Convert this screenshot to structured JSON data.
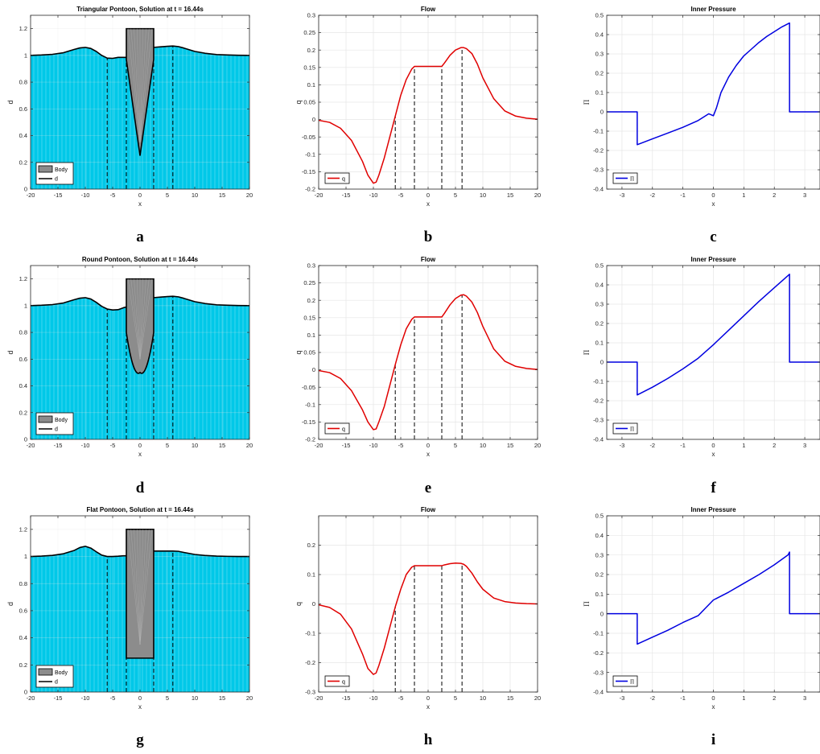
{
  "colors": {
    "water": "#00c8e8",
    "body": "#8c8c8c",
    "surface": "#000000",
    "flow": "#e00000",
    "pressure": "#0000e0",
    "grid": "#e6e6e6"
  },
  "chart_data": [
    {
      "id": "a",
      "type": "area",
      "letter": "a",
      "title": "Triangular Pontoon, Solution at t = 16.44s",
      "xlabel": "x",
      "ylabel": "d",
      "xlim": [
        -20,
        20
      ],
      "ylim": [
        0,
        1.3
      ],
      "xticks": [
        -20,
        -15,
        -10,
        -5,
        0,
        5,
        10,
        15,
        20
      ],
      "yticks": [
        0,
        0.2,
        0.4,
        0.6,
        0.8,
        1,
        1.2
      ],
      "grid": true,
      "legend_position": "bottom-left",
      "legend": [
        "Body",
        "d"
      ],
      "body_shape": "triangle",
      "body_top": 1.2,
      "body_bottom": 0.25,
      "body_half_width": 2.5,
      "vlines": [
        -6,
        -2.5,
        2.5,
        6
      ],
      "series": [
        {
          "name": "d",
          "x": [
            -20,
            -18,
            -16,
            -14,
            -12,
            -11,
            -10,
            -9,
            -8,
            -7,
            -6,
            -5,
            -4,
            -3,
            -2.5
          ],
          "y": [
            1.0,
            1.003,
            1.008,
            1.02,
            1.045,
            1.056,
            1.06,
            1.052,
            1.03,
            1.0,
            0.98,
            0.978,
            0.985,
            0.985,
            0.985
          ]
        },
        {
          "name": "d-right",
          "x": [
            2.5,
            4,
            5,
            6,
            7,
            8,
            10,
            12,
            14,
            16,
            18,
            20
          ],
          "y": [
            1.06,
            1.065,
            1.068,
            1.07,
            1.066,
            1.055,
            1.03,
            1.015,
            1.006,
            1.003,
            1.001,
            1.0
          ]
        }
      ]
    },
    {
      "id": "b",
      "type": "line",
      "letter": "b",
      "title": "Flow",
      "xlabel": "x",
      "ylabel": "q",
      "xlim": [
        -20,
        20
      ],
      "ylim": [
        -0.2,
        0.3
      ],
      "xticks": [
        -20,
        -15,
        -10,
        -5,
        0,
        5,
        10,
        15,
        20
      ],
      "yticks": [
        -0.2,
        -0.15,
        -0.1,
        -0.05,
        0,
        0.05,
        0.1,
        0.15,
        0.2,
        0.25,
        0.3
      ],
      "grid": true,
      "legend_position": "bottom-left",
      "legend": [
        "q"
      ],
      "vlines": [
        -6,
        -2.5,
        2.5,
        6.2
      ],
      "series": [
        {
          "name": "q",
          "x": [
            -20,
            -18,
            -16,
            -14,
            -12,
            -11,
            -10,
            -9.5,
            -9,
            -8,
            -7,
            -6,
            -5,
            -4,
            -3,
            -2.5,
            0,
            2.5,
            3,
            4,
            5,
            6,
            6.5,
            7,
            8,
            9,
            10,
            12,
            14,
            16,
            18,
            20
          ],
          "y": [
            -0.002,
            -0.008,
            -0.025,
            -0.06,
            -0.12,
            -0.16,
            -0.183,
            -0.18,
            -0.16,
            -0.11,
            -0.05,
            0.01,
            0.07,
            0.115,
            0.145,
            0.153,
            0.153,
            0.153,
            0.163,
            0.185,
            0.2,
            0.207,
            0.207,
            0.204,
            0.19,
            0.16,
            0.12,
            0.06,
            0.025,
            0.01,
            0.004,
            0.001
          ]
        }
      ]
    },
    {
      "id": "c",
      "type": "line",
      "letter": "c",
      "title": "Inner Pressure",
      "xlabel": "x",
      "ylabel": "Π",
      "xlim": [
        -3.5,
        3.5
      ],
      "ylim": [
        -0.4,
        0.5
      ],
      "xticks": [
        -3,
        -2,
        -1,
        0,
        1,
        2,
        3
      ],
      "yticks": [
        -0.4,
        -0.3,
        -0.2,
        -0.1,
        0,
        0.1,
        0.2,
        0.3,
        0.4,
        0.5
      ],
      "grid": true,
      "legend_position": "bottom-left",
      "legend": [
        "Π"
      ],
      "series": [
        {
          "name": "Π",
          "x": [
            -3.5,
            -2.5,
            -2.5,
            -2.0,
            -1.5,
            -1.0,
            -0.5,
            -0.25,
            -0.15,
            0.0,
            0.1,
            0.25,
            0.5,
            0.75,
            1.0,
            1.25,
            1.5,
            1.75,
            2.0,
            2.25,
            2.5,
            2.5,
            3.5
          ],
          "y": [
            0,
            0,
            -0.17,
            -0.14,
            -0.11,
            -0.08,
            -0.045,
            -0.02,
            -0.01,
            -0.02,
            0.02,
            0.1,
            0.18,
            0.24,
            0.29,
            0.325,
            0.36,
            0.39,
            0.415,
            0.44,
            0.46,
            0,
            0
          ]
        }
      ]
    },
    {
      "id": "d",
      "type": "area",
      "letter": "d",
      "title": "Round Pontoon, Solution at t = 16.44s",
      "xlabel": "x",
      "ylabel": "d",
      "xlim": [
        -20,
        20
      ],
      "ylim": [
        0,
        1.3
      ],
      "xticks": [
        -20,
        -15,
        -10,
        -5,
        0,
        5,
        10,
        15,
        20
      ],
      "yticks": [
        0,
        0.2,
        0.4,
        0.6,
        0.8,
        1,
        1.2
      ],
      "grid": true,
      "legend_position": "bottom-left",
      "legend": [
        "Body",
        "d"
      ],
      "body_shape": "round",
      "body_top": 1.2,
      "body_bottom": 0.5,
      "body_half_width": 2.5,
      "vlines": [
        -6,
        -2.5,
        2.5,
        6
      ],
      "series": [
        {
          "name": "d",
          "x": [
            -20,
            -18,
            -16,
            -14,
            -12,
            -11,
            -10,
            -9,
            -8,
            -7,
            -6,
            -5,
            -4,
            -3,
            -2.5
          ],
          "y": [
            1.0,
            1.003,
            1.008,
            1.02,
            1.045,
            1.056,
            1.06,
            1.05,
            1.025,
            0.995,
            0.975,
            0.968,
            0.97,
            0.985,
            0.99
          ]
        },
        {
          "name": "d-right",
          "x": [
            2.5,
            4,
            5,
            6,
            7,
            8,
            10,
            12,
            14,
            16,
            18,
            20
          ],
          "y": [
            1.06,
            1.065,
            1.068,
            1.07,
            1.066,
            1.055,
            1.03,
            1.015,
            1.006,
            1.003,
            1.001,
            1.0
          ]
        }
      ]
    },
    {
      "id": "e",
      "type": "line",
      "letter": "e",
      "title": "Flow",
      "xlabel": "x",
      "ylabel": "q",
      "xlim": [
        -20,
        20
      ],
      "ylim": [
        -0.2,
        0.3
      ],
      "xticks": [
        -20,
        -15,
        -10,
        -5,
        0,
        5,
        10,
        15,
        20
      ],
      "yticks": [
        -0.2,
        -0.15,
        -0.1,
        -0.05,
        0,
        0.05,
        0.1,
        0.15,
        0.2,
        0.25,
        0.3
      ],
      "grid": true,
      "legend_position": "bottom-left",
      "legend": [
        "q"
      ],
      "vlines": [
        -6,
        -2.5,
        2.5,
        6.2
      ],
      "series": [
        {
          "name": "q",
          "x": [
            -20,
            -18,
            -16,
            -14,
            -12,
            -11,
            -10,
            -9.5,
            -9,
            -8,
            -7,
            -6,
            -5,
            -4,
            -3,
            -2.5,
            0,
            2.5,
            3,
            4,
            5,
            6,
            6.5,
            7,
            8,
            9,
            10,
            12,
            14,
            16,
            18,
            20
          ],
          "y": [
            -0.002,
            -0.008,
            -0.025,
            -0.06,
            -0.115,
            -0.15,
            -0.172,
            -0.17,
            -0.15,
            -0.105,
            -0.045,
            0.015,
            0.072,
            0.118,
            0.145,
            0.152,
            0.152,
            0.152,
            0.163,
            0.187,
            0.205,
            0.215,
            0.216,
            0.212,
            0.195,
            0.165,
            0.125,
            0.06,
            0.025,
            0.01,
            0.004,
            0.001
          ]
        }
      ]
    },
    {
      "id": "f",
      "type": "line",
      "letter": "f",
      "title": "Inner Pressure",
      "xlabel": "x",
      "ylabel": "Π",
      "xlim": [
        -3.5,
        3.5
      ],
      "ylim": [
        -0.4,
        0.5
      ],
      "xticks": [
        -3,
        -2,
        -1,
        0,
        1,
        2,
        3
      ],
      "yticks": [
        -0.4,
        -0.3,
        -0.2,
        -0.1,
        0,
        0.1,
        0.2,
        0.3,
        0.4,
        0.5
      ],
      "grid": true,
      "legend_position": "bottom-left",
      "legend": [
        "Π"
      ],
      "series": [
        {
          "name": "Π",
          "x": [
            -3.5,
            -2.5,
            -2.5,
            -2.0,
            -1.5,
            -1.0,
            -0.5,
            0.0,
            0.5,
            1.0,
            1.5,
            2.0,
            2.5,
            2.5,
            3.5
          ],
          "y": [
            0,
            0,
            -0.17,
            -0.13,
            -0.085,
            -0.035,
            0.02,
            0.09,
            0.165,
            0.24,
            0.315,
            0.385,
            0.455,
            0,
            0
          ]
        }
      ]
    },
    {
      "id": "g",
      "type": "area",
      "letter": "g",
      "title": "Flat Pontoon, Solution at t = 16.44s",
      "xlabel": "x",
      "ylabel": "d",
      "xlim": [
        -20,
        20
      ],
      "ylim": [
        0,
        1.3
      ],
      "xticks": [
        -20,
        -15,
        -10,
        -5,
        0,
        5,
        10,
        15,
        20
      ],
      "yticks": [
        0,
        0.2,
        0.4,
        0.6,
        0.8,
        1,
        1.2
      ],
      "grid": true,
      "legend_position": "bottom-left",
      "legend": [
        "Body",
        "d"
      ],
      "body_shape": "flat",
      "body_top": 1.2,
      "body_bottom": 0.25,
      "body_half_width": 2.5,
      "vlines": [
        -6,
        -2.5,
        2.5,
        6
      ],
      "series": [
        {
          "name": "d",
          "x": [
            -20,
            -18,
            -16,
            -14,
            -12,
            -11,
            -10,
            -9,
            -8,
            -7,
            -6,
            -5,
            -4,
            -3,
            -2.5
          ],
          "y": [
            1.0,
            1.003,
            1.008,
            1.02,
            1.045,
            1.066,
            1.075,
            1.062,
            1.035,
            1.01,
            1.0,
            1.0,
            1.002,
            1.005,
            1.005
          ]
        },
        {
          "name": "d-right",
          "x": [
            2.5,
            4,
            5,
            6,
            7,
            8,
            10,
            12,
            14,
            16,
            18,
            20
          ],
          "y": [
            1.04,
            1.04,
            1.04,
            1.04,
            1.038,
            1.03,
            1.015,
            1.007,
            1.003,
            1.001,
            1.0,
            1.0
          ]
        }
      ]
    },
    {
      "id": "h",
      "type": "line",
      "letter": "h",
      "title": "Flow",
      "xlabel": "x",
      "ylabel": "q",
      "xlim": [
        -20,
        20
      ],
      "ylim": [
        -0.3,
        0.3
      ],
      "xticks": [
        -20,
        -15,
        -10,
        -5,
        0,
        5,
        10,
        15,
        20
      ],
      "yticks": [
        -0.3,
        -0.2,
        -0.1,
        0,
        0.1,
        0.2
      ],
      "grid": true,
      "legend_position": "bottom-left",
      "legend": [
        "q"
      ],
      "vlines": [
        -6,
        -2.5,
        2.5,
        6.2
      ],
      "series": [
        {
          "name": "q",
          "x": [
            -20,
            -18,
            -16,
            -14,
            -12,
            -11,
            -10,
            -9.5,
            -9,
            -8,
            -7,
            -6,
            -5,
            -4,
            -3,
            -2.5,
            0,
            2.5,
            3,
            4,
            5,
            6,
            6.5,
            7,
            8,
            9,
            10,
            12,
            14,
            16,
            18,
            20
          ],
          "y": [
            -0.003,
            -0.012,
            -0.035,
            -0.085,
            -0.17,
            -0.22,
            -0.24,
            -0.235,
            -0.21,
            -0.15,
            -0.08,
            -0.01,
            0.05,
            0.1,
            0.125,
            0.13,
            0.13,
            0.13,
            0.133,
            0.137,
            0.139,
            0.138,
            0.135,
            0.128,
            0.105,
            0.075,
            0.05,
            0.02,
            0.008,
            0.003,
            0.001,
            0.0
          ]
        }
      ]
    },
    {
      "id": "i",
      "type": "line",
      "letter": "i",
      "title": "Inner Pressure",
      "xlabel": "x",
      "ylabel": "Π",
      "xlim": [
        -3.5,
        3.5
      ],
      "ylim": [
        -0.4,
        0.5
      ],
      "xticks": [
        -3,
        -2,
        -1,
        0,
        1,
        2,
        3
      ],
      "yticks": [
        -0.4,
        -0.3,
        -0.2,
        -0.1,
        0,
        0.1,
        0.2,
        0.3,
        0.4,
        0.5
      ],
      "grid": true,
      "legend_position": "bottom-left",
      "legend": [
        "Π"
      ],
      "series": [
        {
          "name": "Π",
          "x": [
            -3.5,
            -2.5,
            -2.5,
            -2.0,
            -1.5,
            -1.0,
            -0.5,
            0.0,
            0.5,
            1.0,
            1.5,
            2.0,
            2.45,
            2.5,
            2.5,
            3.5
          ],
          "y": [
            0,
            0,
            -0.155,
            -0.12,
            -0.085,
            -0.045,
            -0.01,
            0.07,
            0.11,
            0.155,
            0.2,
            0.25,
            0.3,
            0.315,
            0,
            0
          ]
        }
      ]
    }
  ]
}
